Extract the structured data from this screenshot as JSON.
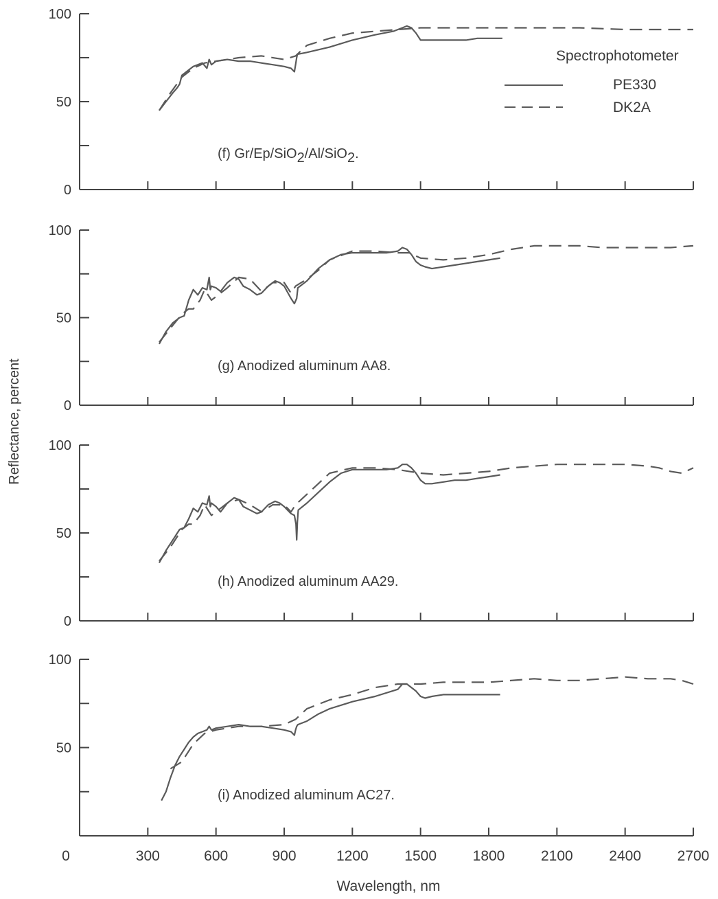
{
  "figure": {
    "ylabel": "Reflectance, percent",
    "xlabel": "Wavelength, nm",
    "x_ticks": [
      0,
      300,
      600,
      900,
      1200,
      1500,
      1800,
      2100,
      2400,
      2700
    ],
    "x_tick_labels": [
      "0",
      "300",
      "600",
      "900",
      "1200",
      "1500",
      "1800",
      "2100",
      "2400",
      "2700"
    ],
    "legend": {
      "title": "Spectrophotometer",
      "entries": [
        {
          "name": "PE330",
          "style": "solid"
        },
        {
          "name": "DK2A",
          "style": "dashed"
        }
      ]
    },
    "line_color": "#5a5a5a"
  },
  "chart_data": [
    {
      "type": "line",
      "panel_label": "(f) Gr/Ep/SiO",
      "panel_label_parts": [
        "(f) Gr/Ep/SiO",
        "2",
        "/Al/SiO",
        "2",
        "."
      ],
      "xlim": [
        0,
        2700
      ],
      "ylim": [
        0,
        100
      ],
      "y_ticks": [
        0,
        50,
        100
      ],
      "y_tick_labels": [
        "0",
        "50",
        "100"
      ],
      "series": [
        {
          "name": "PE330",
          "style": "solid",
          "x": [
            350,
            380,
            410,
            430,
            440,
            450,
            470,
            500,
            540,
            560,
            570,
            580,
            600,
            650,
            700,
            750,
            800,
            850,
            900,
            930,
            945,
            950,
            955,
            958,
            960,
            1000,
            1100,
            1200,
            1300,
            1380,
            1420,
            1440,
            1460,
            1480,
            1500,
            1550,
            1600,
            1650,
            1700,
            1750,
            1800,
            1850,
            1860
          ],
          "y": [
            45,
            50,
            55,
            58,
            60,
            65,
            67,
            70,
            72,
            69,
            74,
            71,
            73,
            74,
            73,
            73,
            72,
            71,
            70,
            69,
            67,
            71,
            75,
            77,
            77,
            78,
            81,
            85,
            88,
            90,
            92,
            93,
            92,
            89,
            85,
            85,
            85,
            85,
            85,
            86,
            86,
            86,
            86
          ]
        },
        {
          "name": "DK2A",
          "style": "dashed",
          "x": [
            350,
            400,
            450,
            500,
            550,
            600,
            650,
            700,
            800,
            900,
            950,
            1000,
            1100,
            1200,
            1300,
            1400,
            1500,
            1600,
            1800,
            2000,
            2200,
            2400,
            2600,
            2700
          ],
          "y": [
            45,
            55,
            64,
            69,
            72,
            73,
            74,
            75,
            76,
            74,
            76,
            82,
            86,
            89,
            90,
            91,
            92,
            92,
            92,
            92,
            92,
            91,
            91,
            91
          ]
        }
      ]
    },
    {
      "type": "line",
      "panel_label": "(g) Anodized aluminum AA8.",
      "xlim": [
        0,
        2700
      ],
      "ylim": [
        0,
        100
      ],
      "y_ticks": [
        0,
        50,
        100
      ],
      "y_tick_labels": [
        "0",
        "50",
        "100"
      ],
      "series": [
        {
          "name": "PE330",
          "style": "solid",
          "x": [
            350,
            380,
            410,
            440,
            460,
            480,
            500,
            520,
            540,
            560,
            570,
            575,
            580,
            600,
            620,
            650,
            680,
            700,
            720,
            750,
            780,
            800,
            830,
            860,
            880,
            900,
            930,
            945,
            955,
            960,
            1000,
            1050,
            1100,
            1150,
            1200,
            1250,
            1300,
            1350,
            1400,
            1420,
            1440,
            1460,
            1480,
            1500,
            1520,
            1550,
            1600,
            1650,
            1700,
            1750,
            1800,
            1850
          ],
          "y": [
            35,
            42,
            47,
            50,
            51,
            60,
            66,
            63,
            67,
            66,
            73,
            66,
            68,
            67,
            65,
            70,
            73,
            72,
            68,
            66,
            63,
            64,
            68,
            71,
            70,
            68,
            61,
            58,
            61,
            67,
            71,
            78,
            83,
            86,
            87,
            87,
            87,
            87,
            88,
            90,
            89,
            86,
            82,
            80,
            79,
            78,
            79,
            80,
            81,
            82,
            83,
            84
          ]
        },
        {
          "name": "DK2A",
          "style": "dashed",
          "x": [
            350,
            400,
            450,
            480,
            500,
            530,
            550,
            580,
            600,
            650,
            700,
            750,
            800,
            850,
            900,
            930,
            950,
            1000,
            1050,
            1100,
            1200,
            1300,
            1400,
            1450,
            1500,
            1600,
            1700,
            1800,
            1900,
            2000,
            2100,
            2200,
            2300,
            2400,
            2500,
            2600,
            2700
          ],
          "y": [
            36,
            44,
            52,
            55,
            55,
            60,
            66,
            60,
            62,
            67,
            73,
            72,
            65,
            70,
            70,
            64,
            68,
            72,
            77,
            83,
            88,
            88,
            87,
            87,
            84,
            83,
            84,
            86,
            89,
            91,
            91,
            91,
            90,
            90,
            90,
            90,
            91
          ]
        }
      ]
    },
    {
      "type": "line",
      "panel_label": "(h) Anodized aluminum AA29.",
      "xlim": [
        0,
        2700
      ],
      "ylim": [
        0,
        100
      ],
      "y_ticks": [
        0,
        50,
        100
      ],
      "y_tick_labels": [
        "0",
        "50",
        "100"
      ],
      "series": [
        {
          "name": "PE330",
          "style": "solid",
          "x": [
            350,
            380,
            410,
            440,
            460,
            480,
            500,
            520,
            540,
            560,
            570,
            575,
            580,
            600,
            620,
            650,
            680,
            700,
            720,
            750,
            780,
            800,
            830,
            860,
            880,
            900,
            930,
            945,
            952,
            955,
            958,
            962,
            1000,
            1050,
            1100,
            1150,
            1200,
            1250,
            1300,
            1350,
            1400,
            1420,
            1440,
            1460,
            1480,
            1500,
            1520,
            1550,
            1600,
            1650,
            1700,
            1750,
            1800,
            1850
          ],
          "y": [
            33,
            40,
            46,
            52,
            53,
            58,
            64,
            62,
            67,
            66,
            71,
            65,
            67,
            65,
            62,
            67,
            70,
            69,
            65,
            63,
            61,
            62,
            66,
            68,
            67,
            65,
            61,
            60,
            55,
            46,
            56,
            63,
            67,
            73,
            79,
            84,
            86,
            86,
            86,
            86,
            87,
            89,
            89,
            87,
            84,
            80,
            78,
            78,
            79,
            80,
            80,
            81,
            82,
            83
          ]
        },
        {
          "name": "DK2A",
          "style": "dashed",
          "x": [
            350,
            400,
            450,
            480,
            500,
            530,
            550,
            580,
            600,
            650,
            700,
            750,
            800,
            850,
            900,
            930,
            950,
            1000,
            1050,
            1100,
            1200,
            1300,
            1400,
            1450,
            1500,
            1600,
            1700,
            1800,
            1900,
            2000,
            2100,
            2200,
            2300,
            2400,
            2500,
            2550,
            2600,
            2650,
            2700
          ],
          "y": [
            34,
            42,
            52,
            55,
            55,
            60,
            66,
            60,
            62,
            67,
            69,
            66,
            62,
            66,
            66,
            62,
            66,
            72,
            78,
            84,
            87,
            87,
            86,
            85,
            84,
            83,
            84,
            85,
            87,
            88,
            89,
            89,
            89,
            89,
            88,
            87,
            85,
            84,
            87
          ]
        }
      ]
    },
    {
      "type": "line",
      "panel_label": "(i) Anodized aluminum AC27.",
      "xlim": [
        0,
        2700
      ],
      "ylim": [
        0,
        100
      ],
      "y_ticks": [
        50,
        100
      ],
      "y_tick_labels": [
        "50",
        "100"
      ],
      "series": [
        {
          "name": "PE330",
          "style": "solid",
          "x": [
            360,
            380,
            400,
            420,
            440,
            460,
            480,
            500,
            520,
            540,
            560,
            570,
            580,
            600,
            650,
            700,
            750,
            800,
            850,
            900,
            930,
            945,
            950,
            955,
            960,
            1000,
            1050,
            1100,
            1200,
            1300,
            1400,
            1420,
            1440,
            1460,
            1480,
            1500,
            1520,
            1550,
            1600,
            1650,
            1700,
            1750,
            1800,
            1850
          ],
          "y": [
            20,
            25,
            33,
            40,
            45,
            49,
            53,
            56,
            58,
            59,
            60,
            62,
            60,
            61,
            62,
            63,
            62,
            62,
            61,
            60,
            59,
            57,
            60,
            62,
            63,
            65,
            69,
            72,
            76,
            79,
            83,
            86,
            86,
            84,
            82,
            79,
            78,
            79,
            80,
            80,
            80,
            80,
            80,
            80
          ]
        },
        {
          "name": "DK2A",
          "style": "dashed",
          "x": [
            400,
            450,
            500,
            550,
            600,
            650,
            700,
            800,
            900,
            950,
            1000,
            1100,
            1200,
            1300,
            1400,
            1500,
            1600,
            1800,
            2000,
            2100,
            2200,
            2300,
            2400,
            2500,
            2600,
            2650,
            2700
          ],
          "y": [
            38,
            42,
            52,
            58,
            60,
            61,
            62,
            62,
            63,
            66,
            72,
            77,
            80,
            84,
            86,
            86,
            87,
            87,
            89,
            88,
            88,
            89,
            90,
            89,
            89,
            88,
            86
          ]
        }
      ]
    }
  ]
}
